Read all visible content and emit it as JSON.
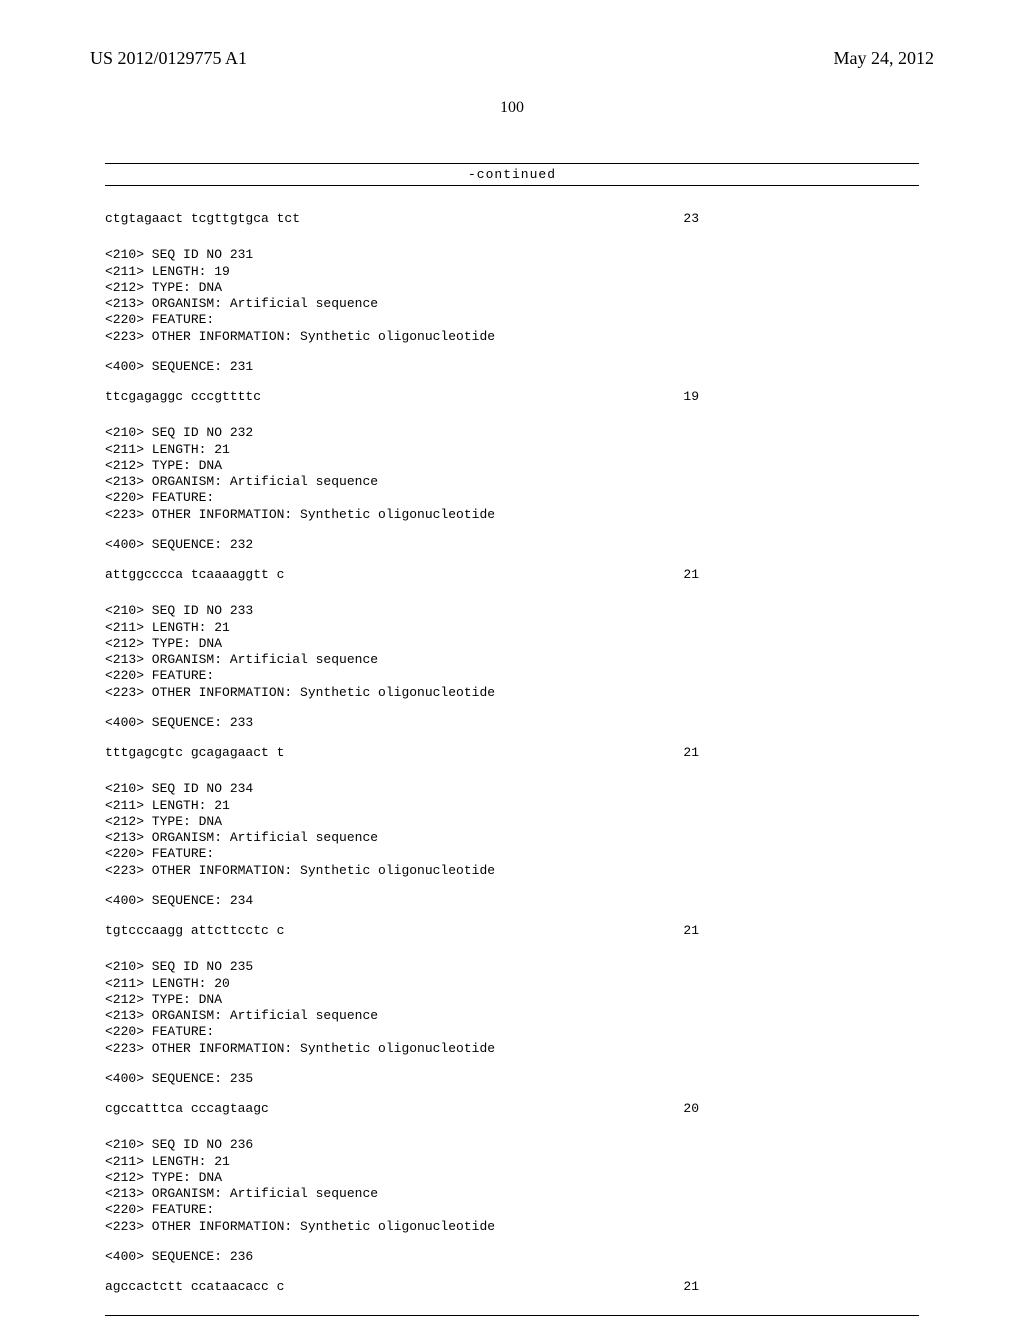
{
  "header": {
    "pub_number": "US 2012/0129775 A1",
    "pub_date": "May 24, 2012"
  },
  "page_number": "100",
  "continued_label": "-continued",
  "top_seq": {
    "sequence": "ctgtagaact tcgttgtgca tct",
    "length": "23"
  },
  "entries": [
    {
      "meta": [
        "<210> SEQ ID NO 231",
        "<211> LENGTH: 19",
        "<212> TYPE: DNA",
        "<213> ORGANISM: Artificial sequence",
        "<220> FEATURE:",
        "<223> OTHER INFORMATION: Synthetic oligonucleotide"
      ],
      "seq_header": "<400> SEQUENCE: 231",
      "sequence": "ttcgagaggc cccgttttc",
      "length": "19"
    },
    {
      "meta": [
        "<210> SEQ ID NO 232",
        "<211> LENGTH: 21",
        "<212> TYPE: DNA",
        "<213> ORGANISM: Artificial sequence",
        "<220> FEATURE:",
        "<223> OTHER INFORMATION: Synthetic oligonucleotide"
      ],
      "seq_header": "<400> SEQUENCE: 232",
      "sequence": "attggcccca tcaaaaggtt c",
      "length": "21"
    },
    {
      "meta": [
        "<210> SEQ ID NO 233",
        "<211> LENGTH: 21",
        "<212> TYPE: DNA",
        "<213> ORGANISM: Artificial sequence",
        "<220> FEATURE:",
        "<223> OTHER INFORMATION: Synthetic oligonucleotide"
      ],
      "seq_header": "<400> SEQUENCE: 233",
      "sequence": "tttgagcgtc gcagagaact t",
      "length": "21"
    },
    {
      "meta": [
        "<210> SEQ ID NO 234",
        "<211> LENGTH: 21",
        "<212> TYPE: DNA",
        "<213> ORGANISM: Artificial sequence",
        "<220> FEATURE:",
        "<223> OTHER INFORMATION: Synthetic oligonucleotide"
      ],
      "seq_header": "<400> SEQUENCE: 234",
      "sequence": "tgtcccaagg attcttcctc c",
      "length": "21"
    },
    {
      "meta": [
        "<210> SEQ ID NO 235",
        "<211> LENGTH: 20",
        "<212> TYPE: DNA",
        "<213> ORGANISM: Artificial sequence",
        "<220> FEATURE:",
        "<223> OTHER INFORMATION: Synthetic oligonucleotide"
      ],
      "seq_header": "<400> SEQUENCE: 235",
      "sequence": "cgccatttca cccagtaagc",
      "length": "20"
    },
    {
      "meta": [
        "<210> SEQ ID NO 236",
        "<211> LENGTH: 21",
        "<212> TYPE: DNA",
        "<213> ORGANISM: Artificial sequence",
        "<220> FEATURE:",
        "<223> OTHER INFORMATION: Synthetic oligonucleotide"
      ],
      "seq_header": "<400> SEQUENCE: 236",
      "sequence": "agccactctt ccataacacc c",
      "length": "21"
    }
  ]
}
